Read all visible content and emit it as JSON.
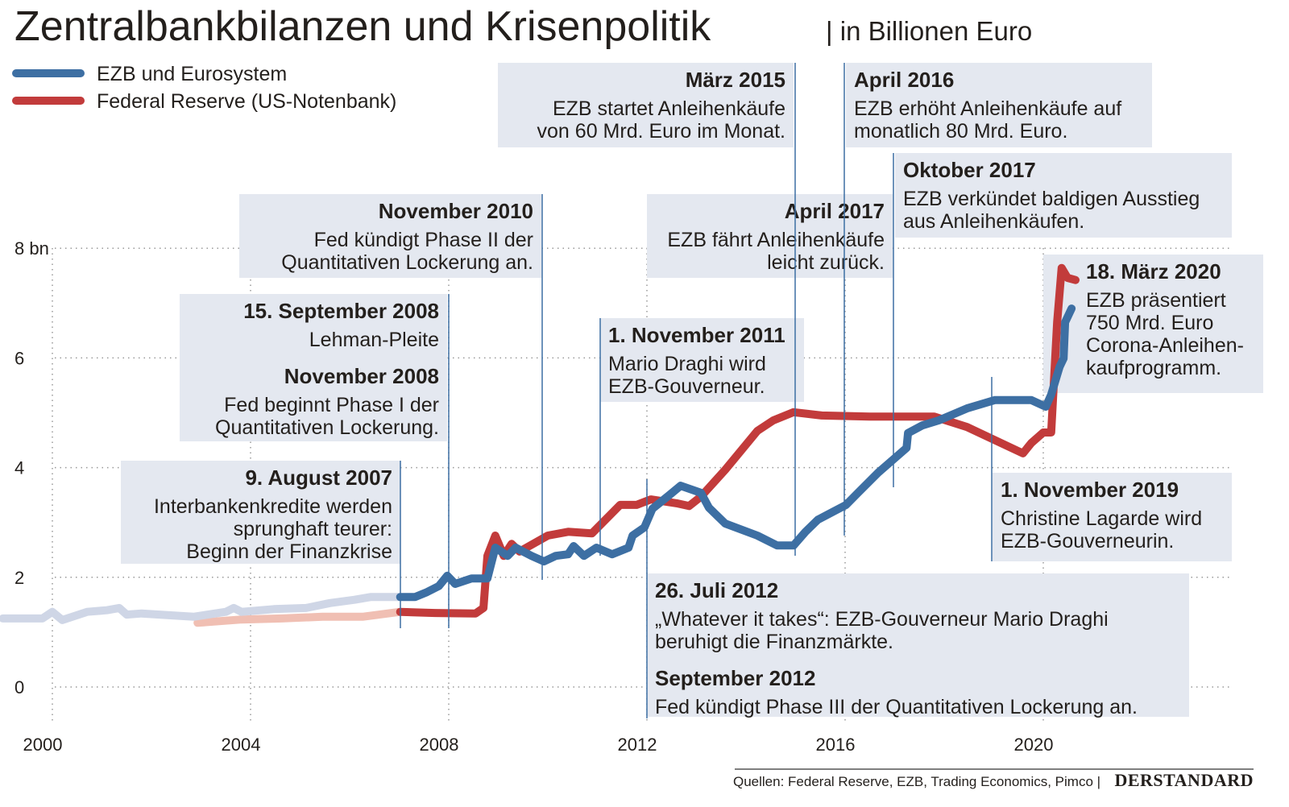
{
  "title": "Zentralbankbilanzen und Krisenpolitik",
  "subtitle": "| in Billionen Euro",
  "source": "Quellen: Federal Reserve, EZB, Trading Economics, Pimco |",
  "brand": "DERSTANDARD",
  "colors": {
    "ecb": "#3d6fa3",
    "ecb_light": "#cfd6e6",
    "fed": "#c23b3b",
    "fed_light": "#f0bfb3",
    "box": "#e4e8f0",
    "event_line": "#3d6fa3"
  },
  "chart_data": {
    "type": "line",
    "title": "Zentralbankbilanzen und Krisenpolitik",
    "ylabel": "in Billionen Euro",
    "xlim": [
      1999,
      2023
    ],
    "ylim": [
      0,
      8
    ],
    "x_ticks": [
      "2000",
      "2004",
      "2008",
      "2012",
      "2016",
      "2020"
    ],
    "y_ticks": [
      "0",
      "2",
      "4",
      "6",
      "8 bn"
    ],
    "grid": true,
    "legend_placement": "top-left",
    "series": [
      {
        "name": "EZB und Eurosystem",
        "color": "#3d6fa3",
        "points": [
          [
            1999.0,
            1.25
          ],
          [
            1999.8,
            1.25
          ],
          [
            2000.0,
            1.37
          ],
          [
            2000.2,
            1.22
          ],
          [
            2000.7,
            1.37
          ],
          [
            2001.1,
            1.4
          ],
          [
            2001.35,
            1.44
          ],
          [
            2001.5,
            1.32
          ],
          [
            2001.8,
            1.34
          ],
          [
            2002.85,
            1.28
          ],
          [
            2003.5,
            1.37
          ],
          [
            2003.66,
            1.44
          ],
          [
            2003.82,
            1.37
          ],
          [
            2004.47,
            1.42
          ],
          [
            2005.12,
            1.44
          ],
          [
            2005.6,
            1.53
          ],
          [
            2006.1,
            1.59
          ],
          [
            2006.42,
            1.64
          ],
          [
            2007.02,
            1.64
          ],
          [
            2007.32,
            1.64
          ],
          [
            2007.56,
            1.73
          ],
          [
            2007.8,
            1.84
          ],
          [
            2007.97,
            2.03
          ],
          [
            2008.13,
            1.88
          ],
          [
            2008.46,
            1.98
          ],
          [
            2008.78,
            1.98
          ],
          [
            2008.94,
            2.54
          ],
          [
            2009.19,
            2.39
          ],
          [
            2009.35,
            2.54
          ],
          [
            2009.67,
            2.39
          ],
          [
            2009.92,
            2.29
          ],
          [
            2010.16,
            2.39
          ],
          [
            2010.41,
            2.42
          ],
          [
            2010.52,
            2.57
          ],
          [
            2010.73,
            2.39
          ],
          [
            2010.98,
            2.54
          ],
          [
            2011.3,
            2.42
          ],
          [
            2011.63,
            2.54
          ],
          [
            2011.71,
            2.76
          ],
          [
            2011.95,
            2.91
          ],
          [
            2012.11,
            3.25
          ],
          [
            2012.44,
            3.49
          ],
          [
            2012.68,
            3.67
          ],
          [
            2013.09,
            3.54
          ],
          [
            2013.25,
            3.27
          ],
          [
            2013.58,
            2.98
          ],
          [
            2014.23,
            2.76
          ],
          [
            2014.63,
            2.58
          ],
          [
            2014.96,
            2.58
          ],
          [
            2015.2,
            2.83
          ],
          [
            2015.45,
            3.05
          ],
          [
            2016.02,
            3.32
          ],
          [
            2016.26,
            3.54
          ],
          [
            2016.67,
            3.91
          ],
          [
            2017.24,
            4.36
          ],
          [
            2017.27,
            4.63
          ],
          [
            2017.56,
            4.77
          ],
          [
            2017.89,
            4.86
          ],
          [
            2018.46,
            5.08
          ],
          [
            2019.02,
            5.23
          ],
          [
            2019.76,
            5.23
          ],
          [
            2020.05,
            5.11
          ],
          [
            2020.16,
            5.33
          ],
          [
            2020.33,
            5.84
          ],
          [
            2020.41,
            5.99
          ],
          [
            2020.44,
            6.65
          ],
          [
            2020.57,
            6.9
          ]
        ],
        "faded_before": 2007.02
      },
      {
        "name": "Federal Reserve (US-Notenbank)",
        "color": "#c23b3b",
        "points": [
          [
            2002.93,
            1.17
          ],
          [
            2003.82,
            1.23
          ],
          [
            2004.63,
            1.25
          ],
          [
            2005.45,
            1.28
          ],
          [
            2006.26,
            1.28
          ],
          [
            2007.02,
            1.37
          ],
          [
            2007.72,
            1.35
          ],
          [
            2008.54,
            1.34
          ],
          [
            2008.7,
            1.44
          ],
          [
            2008.78,
            2.39
          ],
          [
            2008.94,
            2.76
          ],
          [
            2009.11,
            2.39
          ],
          [
            2009.27,
            2.61
          ],
          [
            2009.43,
            2.47
          ],
          [
            2010.0,
            2.76
          ],
          [
            2010.41,
            2.83
          ],
          [
            2010.89,
            2.8
          ],
          [
            2011.46,
            3.32
          ],
          [
            2011.79,
            3.32
          ],
          [
            2012.08,
            3.42
          ],
          [
            2012.6,
            3.35
          ],
          [
            2012.85,
            3.3
          ],
          [
            2013.09,
            3.47
          ],
          [
            2013.58,
            3.96
          ],
          [
            2014.23,
            4.67
          ],
          [
            2014.55,
            4.86
          ],
          [
            2014.96,
            5.01
          ],
          [
            2015.53,
            4.95
          ],
          [
            2016.5,
            4.93
          ],
          [
            2017.8,
            4.93
          ],
          [
            2018.46,
            4.74
          ],
          [
            2019.59,
            4.26
          ],
          [
            2019.76,
            4.45
          ],
          [
            2020.0,
            4.64
          ],
          [
            2020.16,
            4.64
          ],
          [
            2020.28,
            6.65
          ],
          [
            2020.37,
            7.64
          ],
          [
            2020.49,
            7.46
          ],
          [
            2020.65,
            7.42
          ]
        ],
        "faded_before": 2007.02
      }
    ],
    "annotations": [
      {
        "lines": [
          {
            "text": "9. August 2007",
            "bold": true
          },
          {
            "text": "Interbankenkredite werden"
          },
          {
            "text": "sprunghaft teurer:"
          },
          {
            "text": "Beginn der Finanzkrise"
          }
        ]
      },
      {
        "lines": [
          {
            "text": "15. September 2008",
            "bold": true
          },
          {
            "text": "Lehman-Pleite"
          },
          {
            "text": "November 2008",
            "bold": true
          },
          {
            "text": "Fed beginnt Phase I der"
          },
          {
            "text": "Quantitativen Lockerung."
          }
        ]
      },
      {
        "lines": [
          {
            "text": "November 2010",
            "bold": true
          },
          {
            "text": "Fed kündigt Phase II der"
          },
          {
            "text": "Quantitativen Lockerung an."
          }
        ]
      },
      {
        "lines": [
          {
            "text": "1. November 2011",
            "bold": true
          },
          {
            "text": "Mario Draghi wird"
          },
          {
            "text": "EZB-Gouverneur."
          }
        ]
      },
      {
        "lines": [
          {
            "text": "26. Juli 2012",
            "bold": true
          },
          {
            "text": "„Whatever it takes“: EZB-Gouverneur Mario Draghi"
          },
          {
            "text": "beruhigt die Finanzmärkte."
          },
          {
            "text": "September 2012",
            "bold": true
          },
          {
            "text": "Fed kündigt Phase III der Quantitativen Lockerung an."
          }
        ]
      },
      {
        "lines": [
          {
            "text": "März 2015",
            "bold": true
          },
          {
            "text": "EZB startet Anleihenkäufe"
          },
          {
            "text": "von 60 Mrd. Euro im Monat."
          }
        ]
      },
      {
        "lines": [
          {
            "text": "April 2016",
            "bold": true
          },
          {
            "text": "EZB erhöht Anleihenkäufe auf"
          },
          {
            "text": "monatlich 80 Mrd. Euro."
          }
        ]
      },
      {
        "lines": [
          {
            "text": "April 2017",
            "bold": true
          },
          {
            "text": "EZB fährt Anleihenkäufe"
          },
          {
            "text": "leicht zurück."
          }
        ]
      },
      {
        "lines": [
          {
            "text": "Oktober 2017",
            "bold": true
          },
          {
            "text": "EZB verkündet baldigen Ausstieg"
          },
          {
            "text": "aus Anleihenkäufen."
          }
        ]
      },
      {
        "lines": [
          {
            "text": "1. November 2019",
            "bold": true
          },
          {
            "text": "Christine Lagarde wird"
          },
          {
            "text": "EZB-Gouverneurin."
          }
        ]
      },
      {
        "lines": [
          {
            "text": "18. März 2020",
            "bold": true
          },
          {
            "text": "EZB präsentiert"
          },
          {
            "text": "750 Mrd. Euro"
          },
          {
            "text": "Corona-Anleihen-"
          },
          {
            "text": "kaufprogramm."
          }
        ]
      }
    ]
  }
}
